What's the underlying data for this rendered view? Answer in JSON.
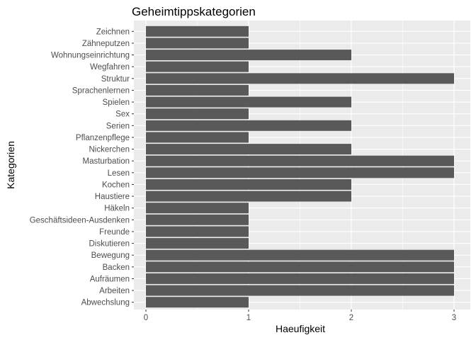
{
  "chart_data": {
    "type": "bar",
    "orientation": "horizontal",
    "title": "Geheimtippskategorien",
    "xlabel": "Haeufigkeit",
    "ylabel": "Kategorien",
    "xlim": [
      0,
      3
    ],
    "x_ticks": [
      "0",
      "1",
      "2",
      "3"
    ],
    "grid": true,
    "legend": "none",
    "bar_color": "#595959",
    "panel_background": "#ebebeb",
    "categories": [
      "Abwechslung",
      "Arbeiten",
      "Aufräumen",
      "Backen",
      "Bewegung",
      "Diskutieren",
      "Freunde",
      "Geschäftsideen-Ausdenken",
      "Häkeln",
      "Haustiere",
      "Kochen",
      "Lesen",
      "Masturbation",
      "Nickerchen",
      "Pflanzenpflege",
      "Serien",
      "Sex",
      "Spielen",
      "Sprachenlernen",
      "Struktur",
      "Wegfahren",
      "Wohnungseinrichtung",
      "Zähneputzen",
      "Zeichnen"
    ],
    "values": [
      1,
      3,
      3,
      3,
      3,
      1,
      1,
      1,
      1,
      2,
      2,
      3,
      3,
      2,
      1,
      2,
      1,
      2,
      1,
      3,
      1,
      2,
      1,
      1
    ]
  }
}
